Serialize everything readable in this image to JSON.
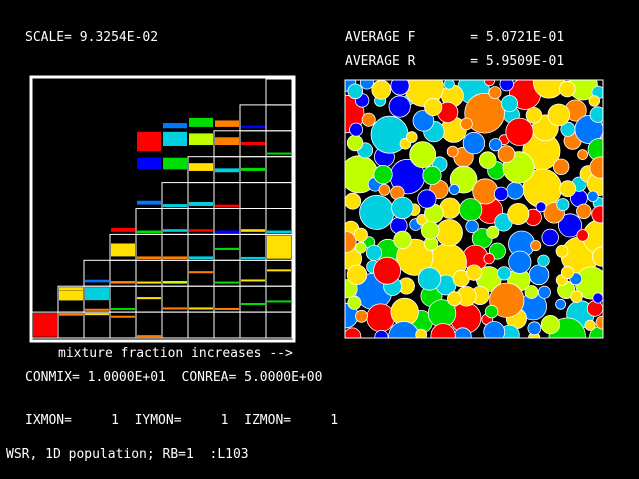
{
  "header": {
    "scale": "SCALE= 9.3254E-02",
    "avg_f": "AVERAGE F       = 5.0721E-01",
    "avg_r": "AVERAGE R       = 5.9509E-01"
  },
  "axis_label": "mixture fraction increases -->",
  "params": {
    "conmix": "CONMIX= 1.0000E+01  CONREA= 5.0000E+00",
    "monitor": "IXMON=     1  IYMON=     1  IZMON=     1"
  },
  "footer": "WSR, 1D population; RB=1  :L103",
  "colors": {
    "red": "#ff0000",
    "orange": "#ff7f00",
    "yellow": "#ffe000",
    "lime": "#bfff00",
    "green": "#00dd00",
    "cyan": "#00d0e0",
    "azure": "#0077ff",
    "blue": "#0000ff"
  }
}
